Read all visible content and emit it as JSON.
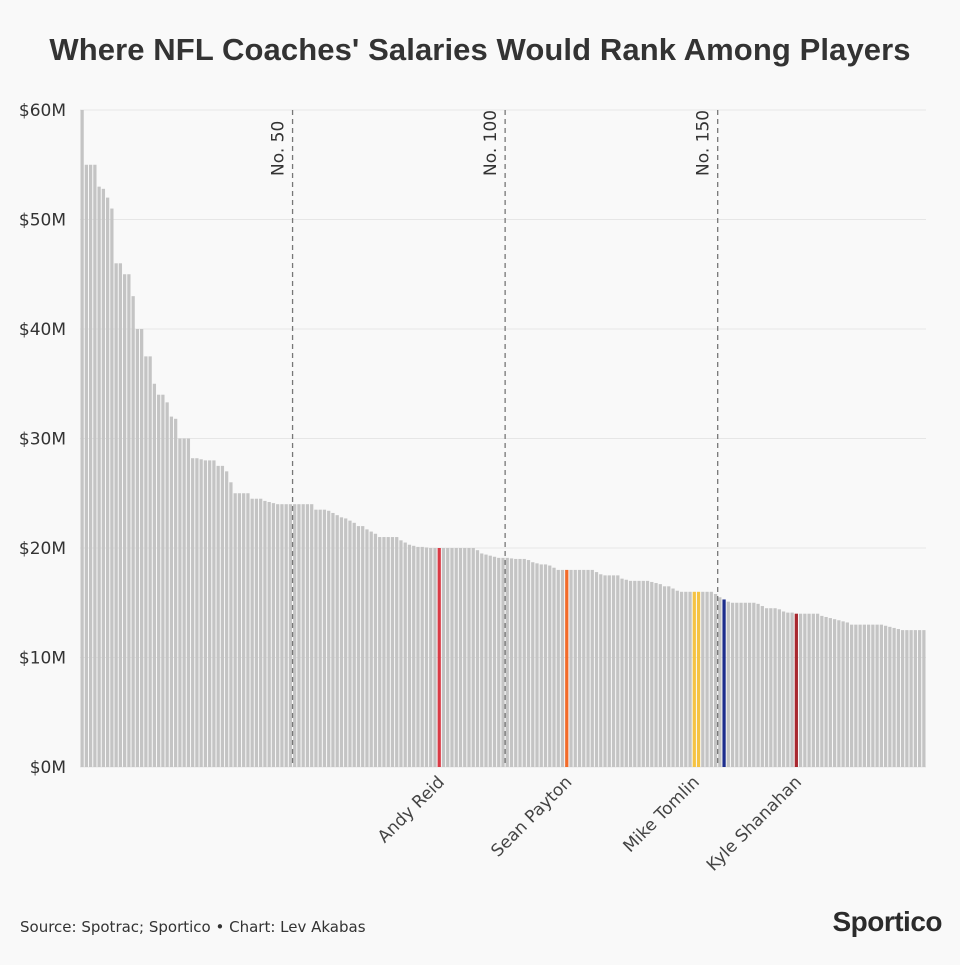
{
  "chart_data": {
    "type": "bar",
    "title": "Where NFL Coaches' Salaries Would Rank Among Players",
    "y_unit": "$M",
    "ylim": [
      0,
      60
    ],
    "y_ticks": [
      0,
      10,
      20,
      30,
      40,
      50,
      60
    ],
    "y_tick_labels": [
      "$0M",
      "$10M",
      "$20M",
      "$30M",
      "$40M",
      "$50M",
      "$60M"
    ],
    "grid": true,
    "values": [
      60,
      55,
      55,
      55,
      53,
      52.8,
      52,
      51,
      46,
      46,
      45,
      45,
      43,
      40,
      40,
      37.5,
      37.5,
      35,
      34,
      34,
      33.3,
      32,
      31.8,
      30,
      30,
      30,
      28.2,
      28.2,
      28.1,
      28,
      28,
      28,
      27.5,
      27.5,
      27,
      26,
      25,
      25,
      25,
      25,
      24.5,
      24.5,
      24.5,
      24.3,
      24.2,
      24.1,
      24,
      24,
      24,
      24,
      24,
      24,
      24,
      24,
      24,
      23.5,
      23.5,
      23.5,
      23.4,
      23.2,
      23,
      22.8,
      22.7,
      22.5,
      22.3,
      22,
      22,
      21.7,
      21.5,
      21.3,
      21,
      21,
      21,
      21,
      21,
      20.7,
      20.5,
      20.3,
      20.2,
      20.1,
      20.1,
      20.05,
      20,
      20,
      20,
      20,
      20,
      20,
      20,
      20,
      20,
      20,
      20,
      19.8,
      19.5,
      19.4,
      19.3,
      19.2,
      19.1,
      19.1,
      19.1,
      19.05,
      19,
      19,
      19,
      18.9,
      18.7,
      18.6,
      18.5,
      18.5,
      18.4,
      18.2,
      18,
      18,
      18,
      18,
      18,
      18,
      18,
      18,
      18,
      17.8,
      17.6,
      17.5,
      17.5,
      17.5,
      17.5,
      17.2,
      17.1,
      17,
      17,
      17,
      17,
      17,
      16.9,
      16.8,
      16.7,
      16.5,
      16.5,
      16.3,
      16.1,
      16,
      16,
      16,
      16,
      16,
      16,
      16,
      16,
      15.8,
      15.5,
      15.3,
      15.1,
      15,
      15,
      15,
      15,
      15,
      15,
      14.9,
      14.7,
      14.5,
      14.5,
      14.5,
      14.4,
      14.2,
      14.1,
      14.1,
      14,
      14,
      14,
      14,
      14,
      14,
      13.8,
      13.7,
      13.6,
      13.5,
      13.4,
      13.3,
      13.2,
      13,
      13,
      13,
      13,
      13,
      13,
      13,
      13,
      12.9,
      12.8,
      12.7,
      12.6,
      12.5,
      12.5,
      12.5,
      12.5,
      12.5,
      12.5
    ],
    "reference_lines": [
      {
        "rank": 50,
        "label": "No. 50"
      },
      {
        "rank": 100,
        "label": "No. 100"
      },
      {
        "rank": 150,
        "label": "No. 150"
      }
    ],
    "highlights": [
      {
        "index": 84,
        "color": "#d93b46",
        "label": "Andy Reid"
      },
      {
        "index": 114,
        "color": "#f26b2a",
        "label": "Sean Payton"
      },
      {
        "index": 144,
        "color": "#f5c343",
        "label": "Mike Tomlin"
      },
      {
        "index": 145,
        "color": "#f5c343",
        "label": ""
      },
      {
        "index": 151,
        "color": "#1d2d8c",
        "label": ""
      },
      {
        "index": 168,
        "color": "#a8272e",
        "label": "Kyle Shanahan"
      }
    ],
    "bar_color": "#c4c4c4",
    "gridline_color": "#e6e6e6",
    "refline_color": "#777777"
  },
  "footer": {
    "source": "Source: Spotrac; Sportico • Chart: Lev Akabas"
  },
  "brand": {
    "logo_text": "Sportico"
  }
}
